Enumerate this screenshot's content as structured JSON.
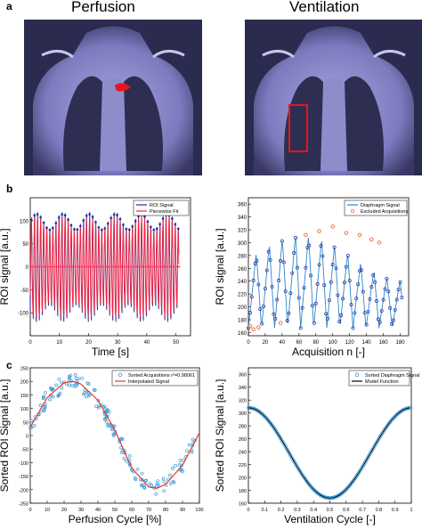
{
  "figure": {
    "panel_labels": [
      "a",
      "b",
      "c"
    ],
    "column_titles": [
      "Perfusion",
      "Ventilation"
    ],
    "colors": {
      "mri_bg": "#2b2b4f",
      "mri_tissue": "#8d8ccc",
      "roi_red": "#e8141c",
      "roi_signal": "#2a2a8a",
      "piecewise_fit": "#ff1f3a",
      "diaphragm_blue": "#2f86c9",
      "excluded_orange": "#e8683a",
      "sorted_marker": "#3d9ad7",
      "interp_red": "#e23b2a"
    }
  },
  "chart_data": [
    {
      "panel": "b-left",
      "type": "line",
      "xlabel": "Time [s]",
      "ylabel": "ROI signal [a.u.]",
      "xlim": [
        0,
        55
      ],
      "ylim": [
        -150,
        150
      ],
      "xticks": [
        "0",
        "10",
        "20",
        "30",
        "40",
        "50"
      ],
      "yticks": [
        "-100",
        "-50",
        "0",
        "50",
        "100"
      ],
      "legend": [
        "ROI Signal",
        "Piecewise Fit"
      ],
      "legend_position": "top-right",
      "series": [
        {
          "name": "ROI Signal",
          "period_s": 1.05,
          "amplitude": 120,
          "duration_s": 51
        },
        {
          "name": "Piecewise Fit",
          "period_s": 1.05,
          "amplitude": 110,
          "duration_s": 51
        }
      ]
    },
    {
      "panel": "b-right",
      "type": "line",
      "xlabel": "Acquisition n [-]",
      "ylabel": "ROI signal [a.u.]",
      "xlim": [
        0,
        190
      ],
      "ylim": [
        155,
        370
      ],
      "xticks": [
        "0",
        "20",
        "40",
        "60",
        "80",
        "100",
        "120",
        "140",
        "160",
        "180"
      ],
      "yticks": [
        "160",
        "180",
        "200",
        "220",
        "240",
        "260",
        "280",
        "300",
        "320",
        "340",
        "360"
      ],
      "legend": [
        "Diaphragm Signal",
        "Excluded Acquisitions"
      ],
      "legend_position": "top-right",
      "series": [
        {
          "name": "Diaphragm Signal",
          "n_points": 182,
          "period": 15.5,
          "min": 167,
          "max": 313
        },
        {
          "name": "Excluded Acquisitions",
          "x": [
            2,
            6,
            12,
            38,
            68,
            84,
            100,
            116,
            132,
            146,
            155
          ],
          "y": [
            170,
            165,
            168,
            175,
            312,
            318,
            325,
            315,
            312,
            305,
            300
          ]
        }
      ]
    },
    {
      "panel": "c-left",
      "type": "scatter",
      "xlabel": "Perfusion Cycle [%]",
      "ylabel": "Sorted ROI Signal [a.u.]",
      "xlim": [
        0,
        100
      ],
      "ylim": [
        -250,
        250
      ],
      "xticks": [
        "0",
        "10",
        "20",
        "30",
        "40",
        "50",
        "60",
        "70",
        "80",
        "90",
        "100"
      ],
      "yticks": [
        "-250",
        "-200",
        "-150",
        "-100",
        "-50",
        "0",
        "50",
        "100",
        "150",
        "200",
        "250"
      ],
      "legend": [
        "Sorted Acquisitions r²=0.98061",
        "Interpolated Signal"
      ],
      "legend_position": "top-right",
      "series": [
        {
          "name": "Sorted Acquisitions r²=0.98061",
          "n_points": 170
        },
        {
          "name": "Interpolated Signal",
          "x": [
            0,
            10,
            20,
            25,
            30,
            40,
            50,
            60,
            70,
            75,
            80,
            90,
            100
          ],
          "y": [
            30,
            140,
            195,
            200,
            190,
            130,
            20,
            -120,
            -190,
            -195,
            -180,
            -110,
            10
          ]
        }
      ]
    },
    {
      "panel": "c-right",
      "type": "scatter",
      "xlabel": "Ventilation Cycle [-]",
      "ylabel": "Sorted ROI Signal [a.u.]",
      "xlim": [
        0,
        1
      ],
      "ylim": [
        160,
        370
      ],
      "xticks": [
        "0",
        "0.1",
        "0.2",
        "0.3",
        "0.4",
        "0.5",
        "0.6",
        "0.7",
        "0.8",
        "0.9",
        "1"
      ],
      "yticks": [
        "160",
        "180",
        "200",
        "220",
        "240",
        "260",
        "280",
        "300",
        "320",
        "340",
        "360"
      ],
      "legend": [
        "Sorted Diaphragm Signal",
        "Model Function"
      ],
      "legend_position": "top-right",
      "series": [
        {
          "name": "Model Function",
          "min": 168,
          "max": 308,
          "minimum_at": 0.5
        }
      ]
    }
  ]
}
